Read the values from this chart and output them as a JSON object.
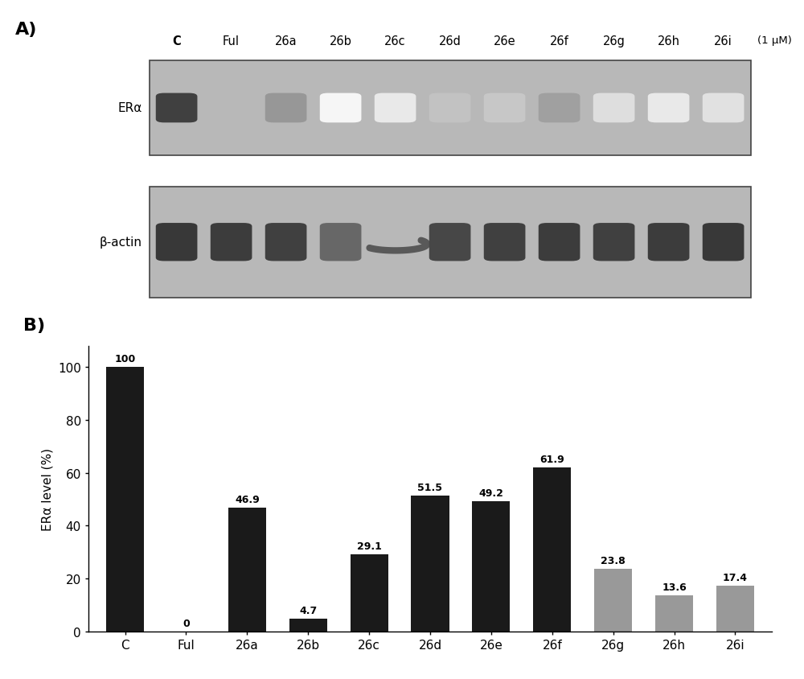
{
  "panel_a_label": "A)",
  "panel_b_label": "B)",
  "wb_labels_top": [
    "C",
    "Ful",
    "26a",
    "26b",
    "26c",
    "26d",
    "26e",
    "26f",
    "26g",
    "26h",
    "26i"
  ],
  "wb_conc_label": "(1 μM)",
  "er_alpha_label": "ERα",
  "beta_actin_label": "β-actin",
  "bar_categories": [
    "C",
    "Ful",
    "26a",
    "26b",
    "26c",
    "26d",
    "26e",
    "26f",
    "26g",
    "26h",
    "26i"
  ],
  "bar_values": [
    100,
    0,
    46.9,
    4.7,
    29.1,
    51.5,
    49.2,
    61.9,
    23.8,
    13.6,
    17.4
  ],
  "bar_colors": [
    "#1a1a1a",
    "#1a1a1a",
    "#1a1a1a",
    "#1a1a1a",
    "#1a1a1a",
    "#1a1a1a",
    "#1a1a1a",
    "#1a1a1a",
    "#999999",
    "#999999",
    "#999999"
  ],
  "bar_labels": [
    "100",
    "0",
    "46.9",
    "4.7",
    "29.1",
    "51.5",
    "49.2",
    "61.9",
    "23.8",
    "13.6",
    "17.4"
  ],
  "ylabel": "ERα level (%)",
  "yticks": [
    0,
    20,
    40,
    60,
    80,
    100
  ],
  "ylim": [
    0,
    108
  ],
  "background_color": "#ffffff",
  "wb_bg_color": "#b8b8b8",
  "er_band_intensities": [
    0.88,
    0.0,
    0.48,
    0.04,
    0.1,
    0.28,
    0.26,
    0.44,
    0.15,
    0.1,
    0.14
  ],
  "actin_band_intensities": [
    0.92,
    0.9,
    0.88,
    0.7,
    0.0,
    0.85,
    0.88,
    0.9,
    0.88,
    0.9,
    0.92
  ]
}
